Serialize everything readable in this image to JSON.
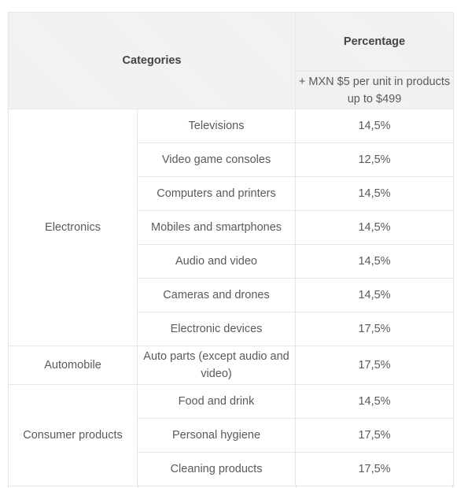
{
  "table": {
    "header": {
      "categories": "Categories",
      "percentage": "Percentage",
      "percentage_note": "+ MXN $5 per unit in products up to $499"
    },
    "groups": [
      {
        "name": "Electronics",
        "items": [
          {
            "label": "Televisions",
            "value": "14,5%"
          },
          {
            "label": "Video game consoles",
            "value": "12,5%"
          },
          {
            "label": "Computers and printers",
            "value": "14,5%"
          },
          {
            "label": "Mobiles and smartphones",
            "value": "14,5%"
          },
          {
            "label": "Audio and video",
            "value": "14,5%"
          },
          {
            "label": "Cameras and drones",
            "value": "14,5%"
          },
          {
            "label": "Electronic devices",
            "value": "17,5%"
          }
        ]
      },
      {
        "name": "Automobile",
        "items": [
          {
            "label": "Auto parts (except audio and video)",
            "value": "17,5%"
          }
        ]
      },
      {
        "name": "Consumer products",
        "items": [
          {
            "label": "Food and drink",
            "value": "14,5%"
          },
          {
            "label": "Personal hygiene",
            "value": "17,5%"
          },
          {
            "label": "Cleaning products",
            "value": "17,5%"
          }
        ]
      }
    ]
  }
}
